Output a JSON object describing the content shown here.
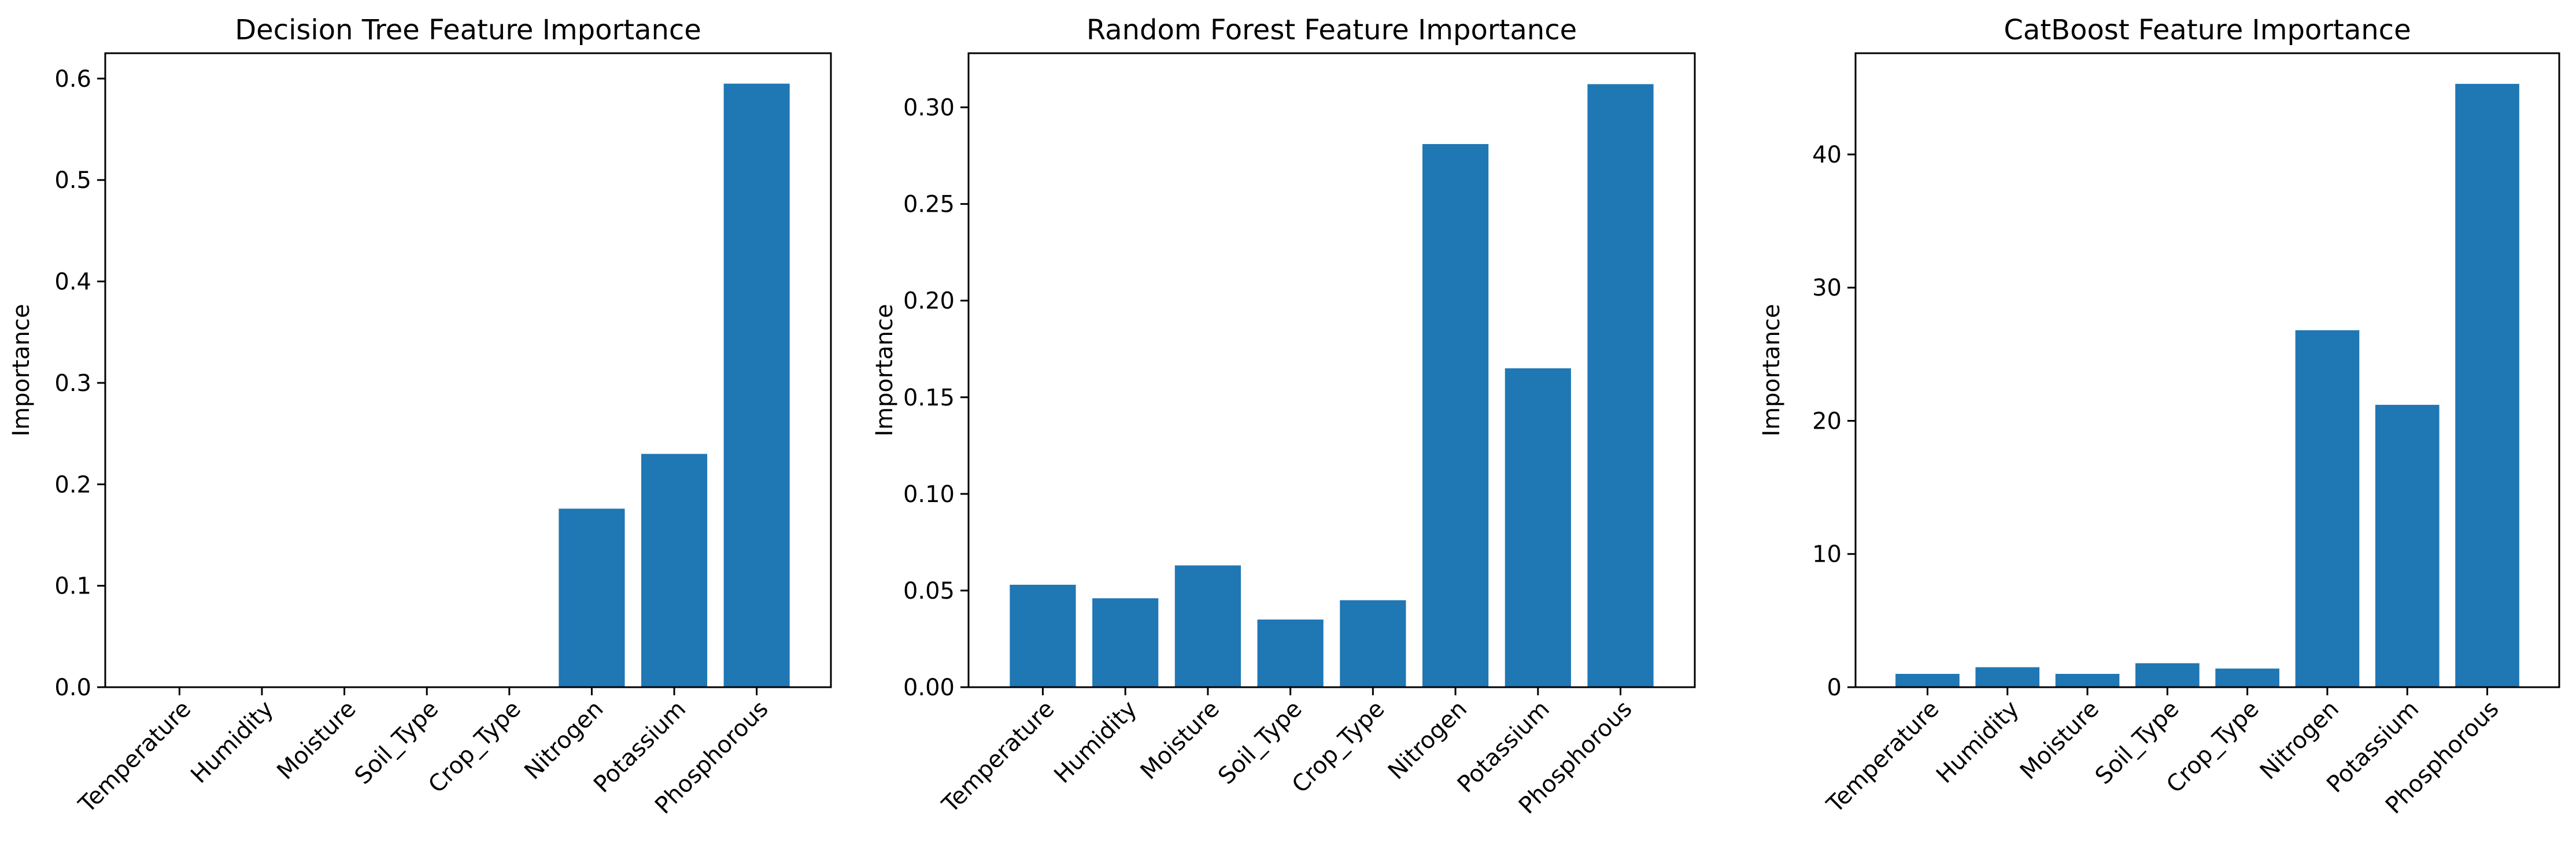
{
  "chart_data": [
    {
      "type": "bar",
      "title": "Decision Tree Feature Importance",
      "xlabel": "",
      "ylabel": "Importance",
      "categories": [
        "Temperature",
        "Humidity",
        "Moisture",
        "Soil_Type",
        "Crop_Type",
        "Nitrogen",
        "Potassium",
        "Phosphorous"
      ],
      "values": [
        0.0,
        0.0,
        0.0,
        0.0,
        0.0,
        0.176,
        0.23,
        0.595
      ],
      "ylim": [
        0,
        0.625
      ],
      "yticks": [
        0.0,
        0.1,
        0.2,
        0.3,
        0.4,
        0.5,
        0.6
      ],
      "ytick_labels": [
        "0.0",
        "0.1",
        "0.2",
        "0.3",
        "0.4",
        "0.5",
        "0.6"
      ],
      "color": "#1f77b4",
      "grid": false
    },
    {
      "type": "bar",
      "title": "Random Forest Feature Importance",
      "xlabel": "",
      "ylabel": "Importance",
      "categories": [
        "Temperature",
        "Humidity",
        "Moisture",
        "Soil_Type",
        "Crop_Type",
        "Nitrogen",
        "Potassium",
        "Phosphorous"
      ],
      "values": [
        0.053,
        0.046,
        0.063,
        0.035,
        0.045,
        0.281,
        0.165,
        0.312
      ],
      "ylim": [
        0,
        0.328
      ],
      "yticks": [
        0.0,
        0.05,
        0.1,
        0.15,
        0.2,
        0.25,
        0.3
      ],
      "ytick_labels": [
        "0.00",
        "0.05",
        "0.10",
        "0.15",
        "0.20",
        "0.25",
        "0.30"
      ],
      "color": "#1f77b4",
      "grid": false
    },
    {
      "type": "bar",
      "title": "CatBoost Feature Importance",
      "xlabel": "",
      "ylabel": "Importance",
      "categories": [
        "Temperature",
        "Humidity",
        "Moisture",
        "Soil_Type",
        "Crop_Type",
        "Nitrogen",
        "Potassium",
        "Phosphorous"
      ],
      "values": [
        1.0,
        1.5,
        1.0,
        1.8,
        1.4,
        26.8,
        21.2,
        45.3
      ],
      "ylim": [
        0,
        47.6
      ],
      "yticks": [
        0,
        10,
        20,
        30,
        40
      ],
      "ytick_labels": [
        "0",
        "10",
        "20",
        "30",
        "40"
      ],
      "color": "#1f77b4",
      "grid": false
    }
  ]
}
